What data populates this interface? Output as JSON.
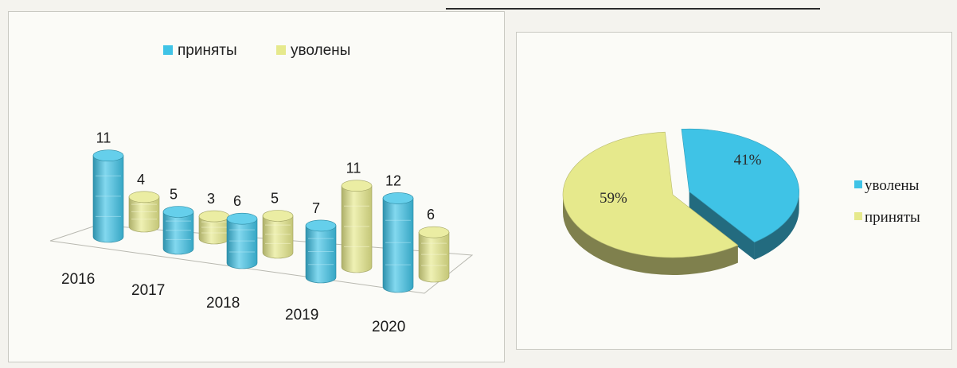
{
  "chart_data": [
    {
      "type": "bar",
      "categories": [
        "2016",
        "2017",
        "2018",
        "2019",
        "2020"
      ],
      "series": [
        {
          "name": "приняты",
          "values": [
            11,
            5,
            6,
            7,
            12
          ],
          "color": "#3fc3e6"
        },
        {
          "name": "уволены",
          "values": [
            4,
            3,
            5,
            11,
            6
          ],
          "color": "#e6e98c"
        }
      ],
      "legend": "top",
      "grid": false
    },
    {
      "type": "pie",
      "slices": [
        {
          "label": "уволены",
          "value": 41,
          "display": "41%",
          "color": "#3fc3e6"
        },
        {
          "label": "приняты",
          "value": 59,
          "display": "59%",
          "color": "#e6e98c"
        }
      ],
      "legend": "right"
    }
  ]
}
